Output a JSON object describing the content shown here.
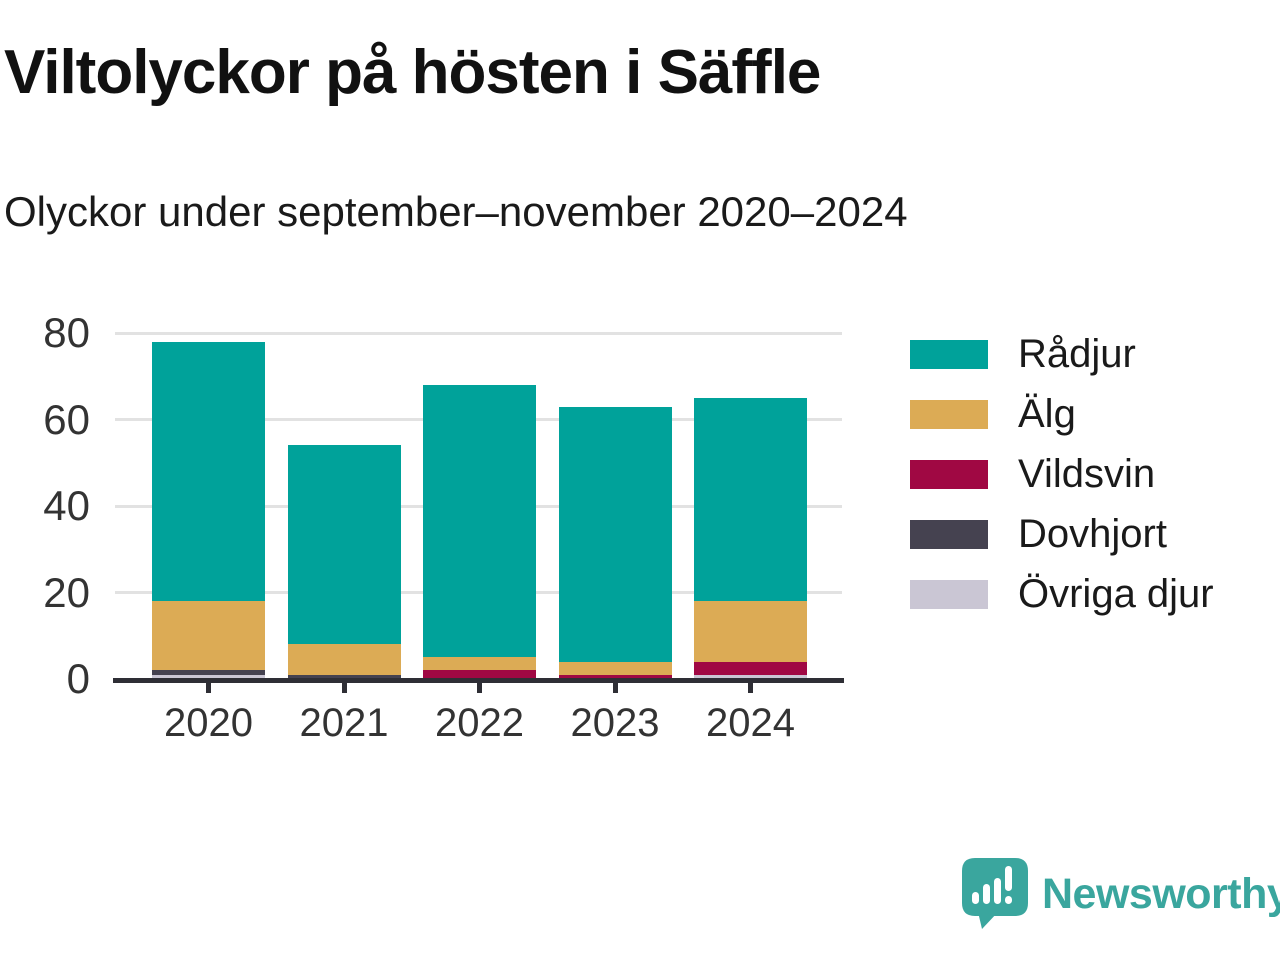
{
  "chart_data": {
    "type": "bar",
    "stacked": true,
    "title": "Viltolyckor på hösten i Säffle",
    "subtitle": "Olyckor under september–november 2020–2024",
    "categories": [
      "2020",
      "2021",
      "2022",
      "2023",
      "2024"
    ],
    "series": [
      {
        "name": "Rådjur",
        "color": "#00a29a",
        "values": [
          60,
          46,
          63,
          59,
          47
        ]
      },
      {
        "name": "Älg",
        "color": "#dcab55",
        "values": [
          16,
          7,
          3,
          3,
          14
        ]
      },
      {
        "name": "Vildsvin",
        "color": "#a00843",
        "values": [
          0,
          0,
          2,
          1,
          3
        ]
      },
      {
        "name": "Dovhjort",
        "color": "#454250",
        "values": [
          1,
          1,
          0,
          0,
          0
        ]
      },
      {
        "name": "Övriga djur",
        "color": "#cac6d4",
        "values": [
          1,
          0,
          0,
          0,
          1
        ]
      }
    ],
    "totals": [
      78,
      54,
      68,
      68,
      65
    ],
    "stack_order_bottom_to_top": [
      "Övriga djur",
      "Dovhjort",
      "Vildsvin",
      "Älg",
      "Rådjur"
    ],
    "ylim": [
      0,
      80
    ],
    "yticks": [
      0,
      20,
      40,
      60,
      80
    ],
    "grid": "horizontal",
    "legend_position": "right",
    "axis_color": "#2e2e35",
    "gridline_color": "#e2e2e2"
  },
  "branding": {
    "logo_text": "Newsworthy",
    "logo_color": "#3aa69e"
  }
}
